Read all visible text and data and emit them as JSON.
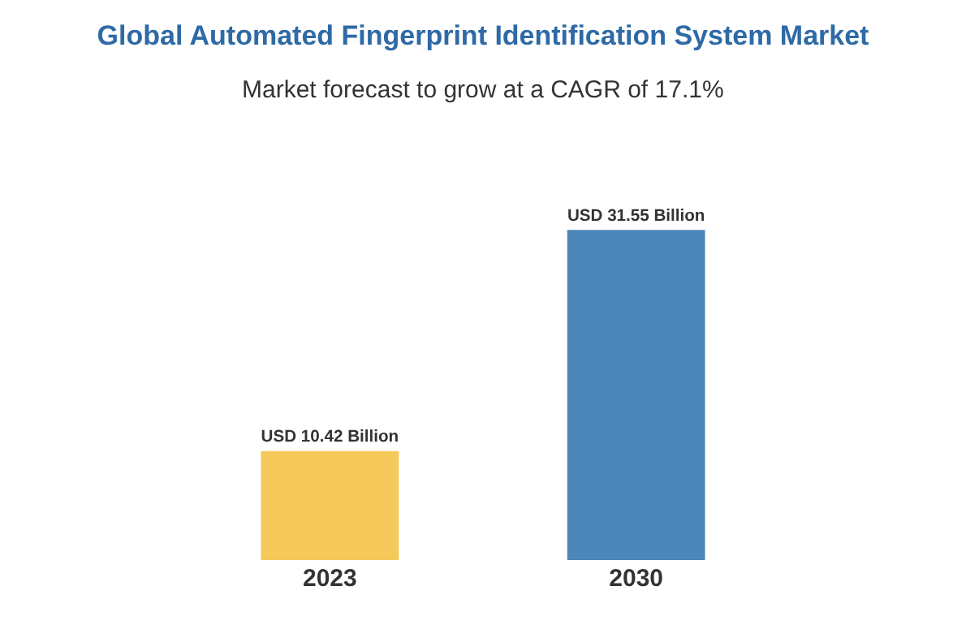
{
  "chart_data": {
    "type": "bar",
    "title": "Global Automated Fingerprint Identification System Market",
    "subtitle": "Market forecast to grow at a CAGR of 17.1%",
    "categories": [
      "2023",
      "2030"
    ],
    "series": [
      {
        "colors": [
          "#f5c95a",
          "#4d86b8"
        ],
        "values": [
          10.42,
          31.55
        ],
        "value_labels": [
          "USD 10.42 Billion",
          "USD 31.55 Billion"
        ]
      }
    ],
    "legend": false,
    "tick_labels": "x"
  }
}
